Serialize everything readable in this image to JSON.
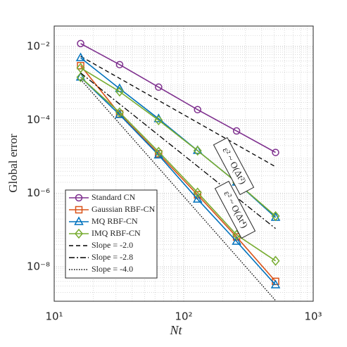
{
  "chart_data": {
    "type": "line",
    "xlabel": "Nt",
    "ylabel": "Global error",
    "xscale": "log",
    "yscale": "log",
    "grid": true,
    "legend": "lower left",
    "xlim": [
      10,
      1000
    ],
    "ylim": [
      1.15e-09,
      0.036
    ],
    "xticks": [
      {
        "value": 10,
        "label": "10¹"
      },
      {
        "value": 100,
        "label": "10²"
      },
      {
        "value": 1000,
        "label": "10³"
      }
    ],
    "yticks": [
      {
        "value": 1e-08,
        "label": "10⁻⁸"
      },
      {
        "value": 1e-06,
        "label": "10⁻⁶"
      },
      {
        "value": 0.0001,
        "label": "10⁻⁴"
      },
      {
        "value": 0.01,
        "label": "10⁻²"
      }
    ],
    "x": [
      16,
      32,
      64,
      128,
      256,
      512
    ],
    "series": [
      {
        "name": "Standard CN",
        "color": "#7e2f8e",
        "marker": "o",
        "values": [
          0.012,
          0.0032,
          0.00078,
          0.00019,
          5e-05,
          1.3e-05
        ]
      },
      {
        "name": "Gaussian RBF-CN",
        "color": "#d95319",
        "marker": "s",
        "values": [
          0.003,
          0.000145,
          1.2e-05,
          9.1e-07,
          6.5e-08,
          4e-09
        ]
      },
      {
        "name": "MQ RBF-CN",
        "color": "#0072bd",
        "marker": "^",
        "values": [
          0.00145,
          0.000138,
          1.1e-05,
          6.9e-07,
          4.9e-08,
          3.2e-09
        ]
      },
      {
        "name": "IMQ RBF-CN",
        "color": "#77ac30",
        "marker": "d",
        "values": [
          0.00145,
          0.00016,
          1.35e-05,
          1.05e-06,
          7.4e-08,
          1.45e-08
        ]
      },
      {
        "name": "Slope = -2.0",
        "color": "#000000",
        "linestyle": "dashed",
        "x": [
          16,
          512
        ],
        "values": [
          0.0054,
          5.3e-06
        ]
      },
      {
        "name": "Slope = -2.8",
        "color": "#000000",
        "linestyle": "dashdot",
        "x": [
          16,
          512
        ],
        "values": [
          0.0019,
          1.1e-07
        ]
      },
      {
        "name": "Slope = -4.0",
        "color": "#000000",
        "linestyle": "dotted",
        "x": [
          16,
          512
        ],
        "values": [
          0.00126,
          1.2e-09
        ]
      },
      {
        "color": "#0072bd",
        "marker": "^",
        "values": [
          0.0049,
          0.00071,
          0.000107,
          1.46e-05,
          2e-06,
          2.2e-07
        ]
      },
      {
        "color": "#77ac30",
        "marker": "d",
        "values": [
          0.0026,
          0.00059,
          9.8e-05,
          1.45e-05,
          2e-06,
          2.4e-07
        ]
      }
    ],
    "annotations": [
      "ε² ~ O(Δt²)",
      "ε² ~ O(Δt⁴)"
    ]
  }
}
